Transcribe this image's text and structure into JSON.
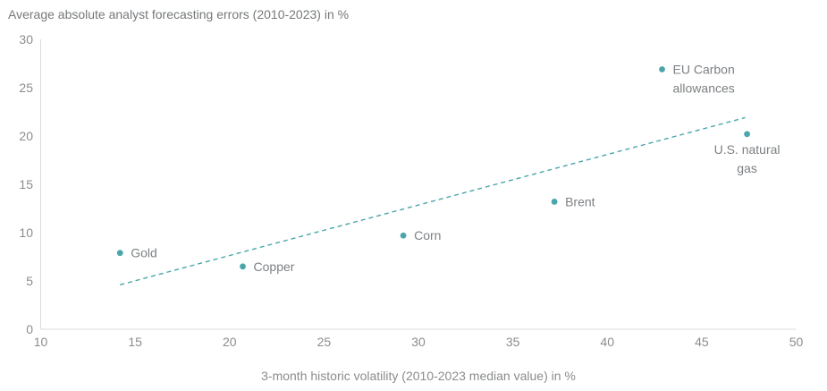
{
  "chart_data": {
    "type": "scatter",
    "title": "Average absolute analyst forecasting errors (2010-2023) in %",
    "xlabel": "3-month historic volatility (2010-2023 median value) in %",
    "xlim": [
      10,
      50
    ],
    "ylim": [
      0,
      30
    ],
    "x_ticks": [
      10,
      15,
      20,
      25,
      30,
      35,
      40,
      45,
      50
    ],
    "y_ticks": [
      0,
      5,
      10,
      15,
      20,
      25,
      30
    ],
    "grid": false,
    "legend": "none",
    "points": [
      {
        "name": "Gold",
        "x": 14.2,
        "y": 7.9,
        "label_lines": [
          "Gold"
        ],
        "label_position": "right"
      },
      {
        "name": "Copper",
        "x": 20.7,
        "y": 6.5,
        "label_lines": [
          "Copper"
        ],
        "label_position": "right"
      },
      {
        "name": "Corn",
        "x": 29.2,
        "y": 9.7,
        "label_lines": [
          "Corn"
        ],
        "label_position": "right"
      },
      {
        "name": "Brent",
        "x": 37.2,
        "y": 13.2,
        "label_lines": [
          "Brent"
        ],
        "label_position": "right"
      },
      {
        "name": "EU Carbon allowances",
        "x": 42.9,
        "y": 26.9,
        "label_lines": [
          "EU Carbon",
          "allowances"
        ],
        "label_position": "right"
      },
      {
        "name": "U.S. natural gas",
        "x": 47.4,
        "y": 20.2,
        "label_lines": [
          "U.S. natural",
          "gas"
        ],
        "label_position": "below"
      }
    ],
    "trendline": {
      "style": "dashed",
      "x1": 14.2,
      "y1": 4.6,
      "x2": 47.3,
      "y2": 21.9
    },
    "colors": {
      "point": "#4AA6AB",
      "trendline": "#4AA6AB",
      "axis_line": "#DBDBDB",
      "tick_text": "#8A8C8F",
      "point_label_text": "#7D8083",
      "title_text": "#75787B",
      "axis_title_text": "#8A8C8F",
      "background": "#FFFFFF"
    }
  }
}
